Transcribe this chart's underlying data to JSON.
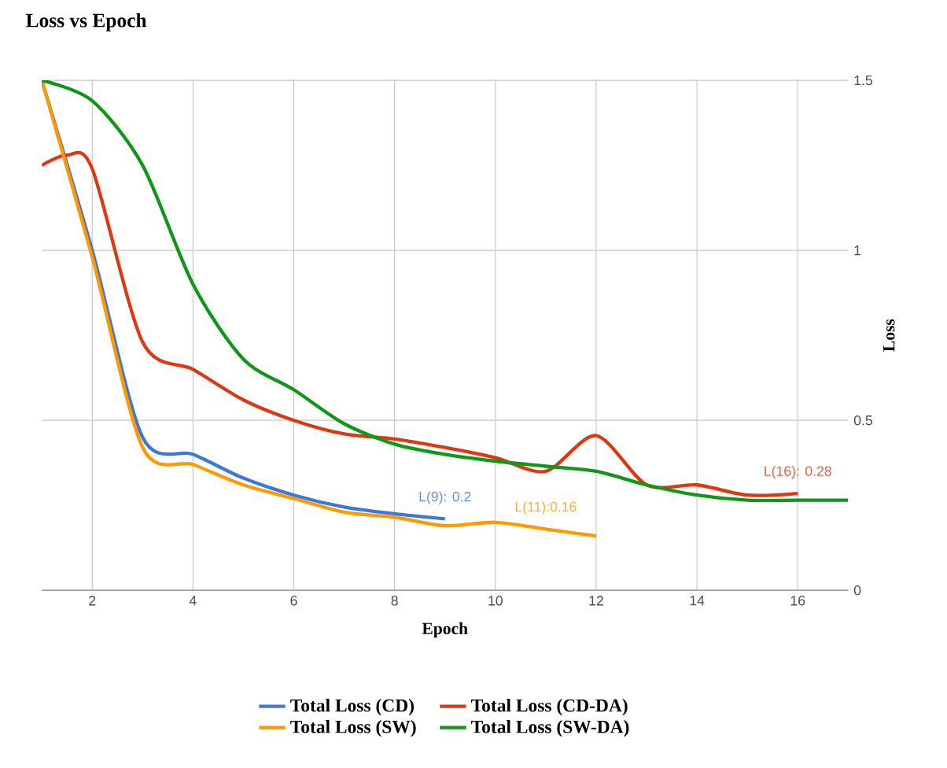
{
  "chart_data": {
    "type": "line",
    "title": "Loss vs Epoch",
    "xlabel": "Epoch",
    "ylabel": "Loss",
    "xlim": [
      1,
      17
    ],
    "xticks": [
      2,
      4,
      6,
      8,
      10,
      12,
      14,
      16
    ],
    "ylim": [
      0,
      1.5
    ],
    "yticks": [
      0,
      0.5,
      1,
      1.5
    ],
    "grid": true,
    "legend": "bottom",
    "marker": "none",
    "line_style": "solid",
    "series": [
      {
        "name": "Total Loss (CD)",
        "color": "#3c78d8",
        "x": [
          1,
          2,
          3,
          4,
          5,
          6,
          7,
          8,
          9
        ],
        "values": [
          1.5,
          1.0,
          0.45,
          0.4,
          0.33,
          0.28,
          0.245,
          0.225,
          0.21
        ]
      },
      {
        "name": "Total Loss (CD-DA)",
        "color": "#dc3912",
        "x": [
          1,
          1.5,
          2,
          3,
          4,
          5,
          6,
          7,
          8,
          9,
          10,
          11,
          12,
          13,
          14,
          15,
          16
        ],
        "values": [
          1.25,
          1.28,
          1.24,
          0.73,
          0.65,
          0.56,
          0.5,
          0.46,
          0.445,
          0.42,
          0.39,
          0.35,
          0.455,
          0.31,
          0.31,
          0.28,
          0.285
        ]
      },
      {
        "name": "Total Loss (SW)",
        "color": "#ff9900",
        "x": [
          1,
          2,
          3,
          4,
          5,
          6,
          7,
          8,
          9,
          10,
          11,
          12
        ],
        "values": [
          1.5,
          0.98,
          0.42,
          0.37,
          0.31,
          0.27,
          0.23,
          0.215,
          0.19,
          0.2,
          0.18,
          0.16
        ]
      },
      {
        "name": "Total Loss (SW-DA)",
        "color": "#109618",
        "x": [
          1,
          2,
          3,
          4,
          5,
          6,
          7,
          8,
          9,
          10,
          11,
          12,
          13,
          14,
          15,
          16,
          17
        ],
        "values": [
          1.5,
          1.44,
          1.25,
          0.9,
          0.68,
          0.59,
          0.49,
          0.43,
          0.4,
          0.38,
          0.365,
          0.35,
          0.31,
          0.28,
          0.265,
          0.265,
          0.265
        ]
      }
    ],
    "annotations": [
      {
        "text": "L(9): 0.2",
        "x": 9,
        "y": 0.21
      },
      {
        "text": "L(16): 0.28",
        "x": 16,
        "y": 0.285
      },
      {
        "text": "L(11):0.16",
        "x": 11,
        "y": 0.18
      }
    ]
  }
}
